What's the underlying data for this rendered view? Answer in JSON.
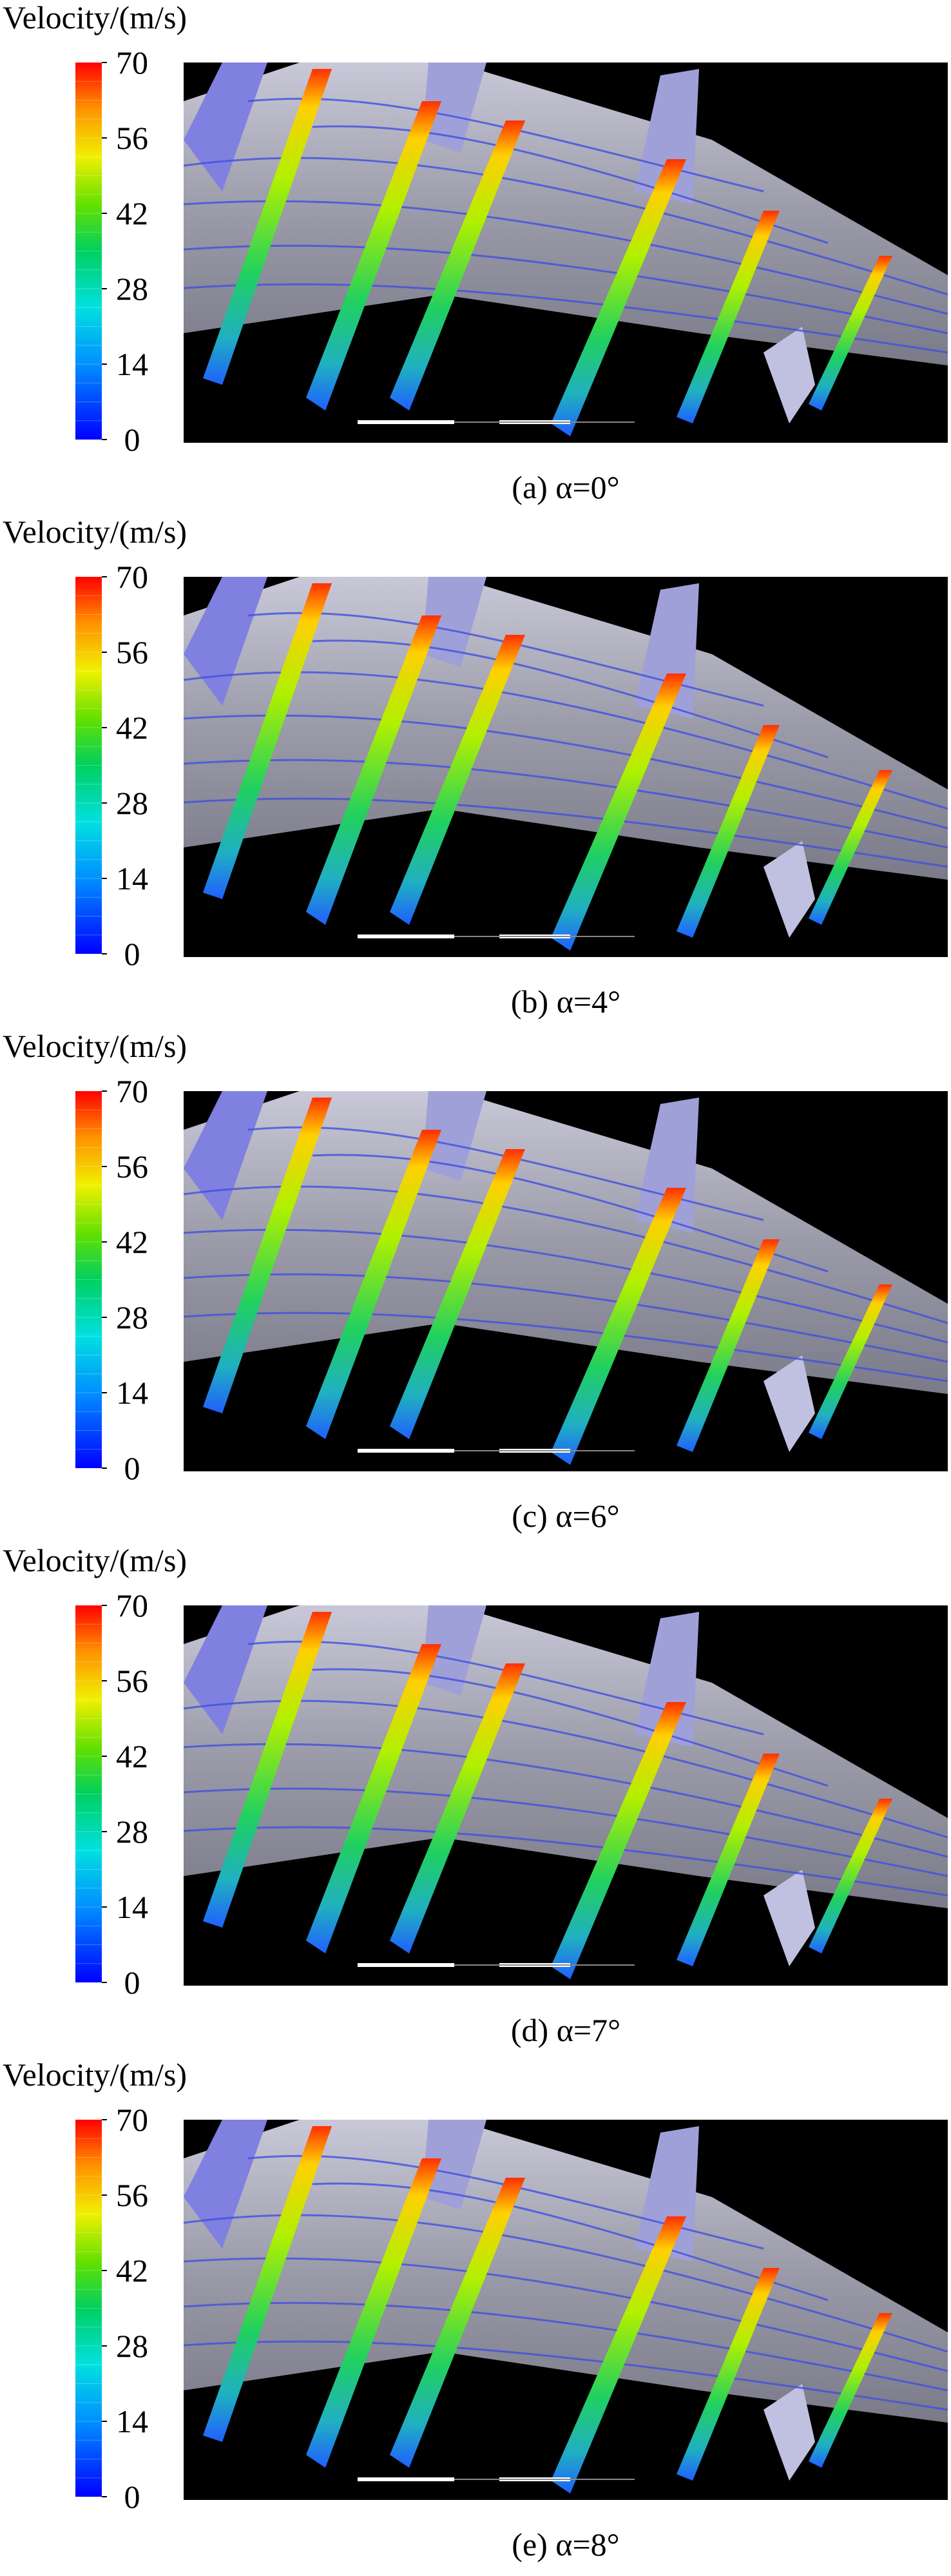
{
  "panels": [
    {
      "legend_title": "Velocity/(m/s)",
      "ticks": [
        0,
        14,
        28,
        42,
        56,
        70
      ],
      "caption": "(a) α=0°"
    },
    {
      "legend_title": "Velocity/(m/s)",
      "ticks": [
        0,
        14,
        28,
        42,
        56,
        70
      ],
      "caption": "(b) α=4°"
    },
    {
      "legend_title": "Velocity/(m/s)",
      "ticks": [
        0,
        14,
        28,
        42,
        56,
        70
      ],
      "caption": "(c) α=6°"
    },
    {
      "legend_title": "Velocity/(m/s)",
      "ticks": [
        0,
        14,
        28,
        42,
        56,
        70
      ],
      "caption": "(d) α=7°"
    },
    {
      "legend_title": "Velocity/(m/s)",
      "ticks": [
        0,
        14,
        28,
        42,
        56,
        70
      ],
      "caption": "(e) α=8°"
    }
  ]
}
